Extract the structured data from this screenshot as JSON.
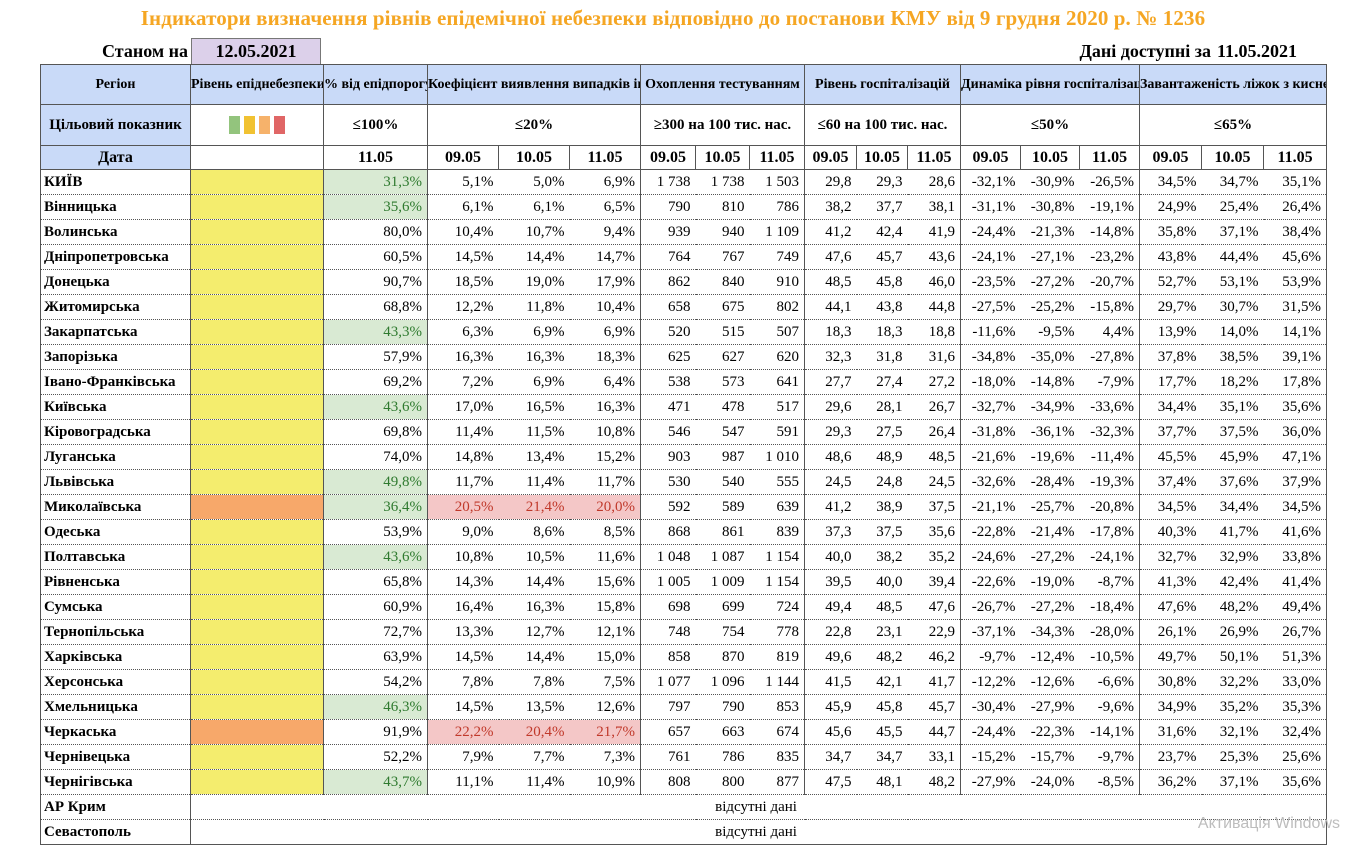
{
  "title": "Індикатори визначення рівнів епідемічної небезпеки відповідно до постанови КМУ від 9 грудня 2020 р. № 1236",
  "as_of_label": "Станом на",
  "as_of_date": "12.05.2021",
  "available_label": "Дані доступні за",
  "available_date": "11.05.2021",
  "headers": {
    "region": "Регіон",
    "level": "Рівень епіднебезпеки",
    "threshold": "% від епідпорогу",
    "detection": "Коефіцієнт виявлення випадків інфікування",
    "testing": "Охоплення тестуванням",
    "hospitalization": "Рівень госпіталізацій",
    "dynamics": "Динаміка рівня госпіталізацій",
    "oxygen": "Завантаженість ліжок з киснем"
  },
  "targets": {
    "label": "Цільовий показник",
    "threshold": "≤100%",
    "detection": "≤20%",
    "testing": "≥300 на 100 тис. нас.",
    "hospitalization": "≤60 на 100 тис. нас.",
    "dynamics": "≤50%",
    "oxygen": "≤65%"
  },
  "swatch_colors": [
    "#93c47d",
    "#f1c232",
    "#f6b26b",
    "#e06666"
  ],
  "dates": {
    "label": "Дата",
    "threshold": "11.05",
    "triple": [
      "09.05",
      "10.05",
      "11.05"
    ]
  },
  "level_colors": {
    "yellow": "#f4ed6e",
    "orange": "#f7a86a"
  },
  "rows": [
    {
      "region": "КИЇВ",
      "level": "yellow",
      "threshold": "31,3%",
      "threshold_ok": true,
      "det": [
        "5,1%",
        "5,0%",
        "6,9%"
      ],
      "det_bad": false,
      "test": [
        "1 738",
        "1 738",
        "1 503"
      ],
      "hosp": [
        "29,8",
        "29,3",
        "28,6"
      ],
      "dyn": [
        "-32,1%",
        "-30,9%",
        "-26,5%"
      ],
      "oxy": [
        "34,5%",
        "34,7%",
        "35,1%"
      ]
    },
    {
      "region": "Вінницька",
      "level": "yellow",
      "threshold": "35,6%",
      "threshold_ok": true,
      "det": [
        "6,1%",
        "6,1%",
        "6,5%"
      ],
      "det_bad": false,
      "test": [
        "790",
        "810",
        "786"
      ],
      "hosp": [
        "38,2",
        "37,7",
        "38,1"
      ],
      "dyn": [
        "-31,1%",
        "-30,8%",
        "-19,1%"
      ],
      "oxy": [
        "24,9%",
        "25,4%",
        "26,4%"
      ]
    },
    {
      "region": "Волинська",
      "level": "yellow",
      "threshold": "80,0%",
      "threshold_ok": false,
      "det": [
        "10,4%",
        "10,7%",
        "9,4%"
      ],
      "det_bad": false,
      "test": [
        "939",
        "940",
        "1 109"
      ],
      "hosp": [
        "41,2",
        "42,4",
        "41,9"
      ],
      "dyn": [
        "-24,4%",
        "-21,3%",
        "-14,8%"
      ],
      "oxy": [
        "35,8%",
        "37,1%",
        "38,4%"
      ]
    },
    {
      "region": "Дніпропетровська",
      "level": "yellow",
      "threshold": "60,5%",
      "threshold_ok": false,
      "det": [
        "14,5%",
        "14,4%",
        "14,7%"
      ],
      "det_bad": false,
      "test": [
        "764",
        "767",
        "749"
      ],
      "hosp": [
        "47,6",
        "45,7",
        "43,6"
      ],
      "dyn": [
        "-24,1%",
        "-27,1%",
        "-23,2%"
      ],
      "oxy": [
        "43,8%",
        "44,4%",
        "45,6%"
      ]
    },
    {
      "region": "Донецька",
      "level": "yellow",
      "threshold": "90,7%",
      "threshold_ok": false,
      "det": [
        "18,5%",
        "19,0%",
        "17,9%"
      ],
      "det_bad": false,
      "test": [
        "862",
        "840",
        "910"
      ],
      "hosp": [
        "48,5",
        "45,8",
        "46,0"
      ],
      "dyn": [
        "-23,5%",
        "-27,2%",
        "-20,7%"
      ],
      "oxy": [
        "52,7%",
        "53,1%",
        "53,9%"
      ]
    },
    {
      "region": "Житомирська",
      "level": "yellow",
      "threshold": "68,8%",
      "threshold_ok": false,
      "det": [
        "12,2%",
        "11,8%",
        "10,4%"
      ],
      "det_bad": false,
      "test": [
        "658",
        "675",
        "802"
      ],
      "hosp": [
        "44,1",
        "43,8",
        "44,8"
      ],
      "dyn": [
        "-27,5%",
        "-25,2%",
        "-15,8%"
      ],
      "oxy": [
        "29,7%",
        "30,7%",
        "31,5%"
      ]
    },
    {
      "region": "Закарпатська",
      "level": "yellow",
      "threshold": "43,3%",
      "threshold_ok": true,
      "det": [
        "6,3%",
        "6,9%",
        "6,9%"
      ],
      "det_bad": false,
      "test": [
        "520",
        "515",
        "507"
      ],
      "hosp": [
        "18,3",
        "18,3",
        "18,8"
      ],
      "dyn": [
        "-11,6%",
        "-9,5%",
        "4,4%"
      ],
      "oxy": [
        "13,9%",
        "14,0%",
        "14,1%"
      ]
    },
    {
      "region": "Запорізька",
      "level": "yellow",
      "threshold": "57,9%",
      "threshold_ok": false,
      "det": [
        "16,3%",
        "16,3%",
        "18,3%"
      ],
      "det_bad": false,
      "test": [
        "625",
        "627",
        "620"
      ],
      "hosp": [
        "32,3",
        "31,8",
        "31,6"
      ],
      "dyn": [
        "-34,8%",
        "-35,0%",
        "-27,8%"
      ],
      "oxy": [
        "37,8%",
        "38,5%",
        "39,1%"
      ]
    },
    {
      "region": "Івано-Франківська",
      "level": "yellow",
      "threshold": "69,2%",
      "threshold_ok": false,
      "det": [
        "7,2%",
        "6,9%",
        "6,4%"
      ],
      "det_bad": false,
      "test": [
        "538",
        "573",
        "641"
      ],
      "hosp": [
        "27,7",
        "27,4",
        "27,2"
      ],
      "dyn": [
        "-18,0%",
        "-14,8%",
        "-7,9%"
      ],
      "oxy": [
        "17,7%",
        "18,2%",
        "17,8%"
      ]
    },
    {
      "region": "Київська",
      "level": "yellow",
      "threshold": "43,6%",
      "threshold_ok": true,
      "det": [
        "17,0%",
        "16,5%",
        "16,3%"
      ],
      "det_bad": false,
      "test": [
        "471",
        "478",
        "517"
      ],
      "hosp": [
        "29,6",
        "28,1",
        "26,7"
      ],
      "dyn": [
        "-32,7%",
        "-34,9%",
        "-33,6%"
      ],
      "oxy": [
        "34,4%",
        "35,1%",
        "35,6%"
      ]
    },
    {
      "region": "Кіровоградська",
      "level": "yellow",
      "threshold": "69,8%",
      "threshold_ok": false,
      "det": [
        "11,4%",
        "11,5%",
        "10,8%"
      ],
      "det_bad": false,
      "test": [
        "546",
        "547",
        "591"
      ],
      "hosp": [
        "29,3",
        "27,5",
        "26,4"
      ],
      "dyn": [
        "-31,8%",
        "-36,1%",
        "-32,3%"
      ],
      "oxy": [
        "37,7%",
        "37,5%",
        "36,0%"
      ]
    },
    {
      "region": "Луганська",
      "level": "yellow",
      "threshold": "74,0%",
      "threshold_ok": false,
      "det": [
        "14,8%",
        "13,4%",
        "15,2%"
      ],
      "det_bad": false,
      "test": [
        "903",
        "987",
        "1 010"
      ],
      "hosp": [
        "48,6",
        "48,9",
        "48,5"
      ],
      "dyn": [
        "-21,6%",
        "-19,6%",
        "-11,4%"
      ],
      "oxy": [
        "45,5%",
        "45,9%",
        "47,1%"
      ]
    },
    {
      "region": "Львівська",
      "level": "yellow",
      "threshold": "49,8%",
      "threshold_ok": true,
      "det": [
        "11,7%",
        "11,4%",
        "11,7%"
      ],
      "det_bad": false,
      "test": [
        "530",
        "540",
        "555"
      ],
      "hosp": [
        "24,5",
        "24,8",
        "24,5"
      ],
      "dyn": [
        "-32,6%",
        "-28,4%",
        "-19,3%"
      ],
      "oxy": [
        "37,4%",
        "37,6%",
        "37,9%"
      ]
    },
    {
      "region": "Миколаївська",
      "level": "orange",
      "threshold": "36,4%",
      "threshold_ok": true,
      "det": [
        "20,5%",
        "21,4%",
        "20,0%"
      ],
      "det_bad": true,
      "test": [
        "592",
        "589",
        "639"
      ],
      "hosp": [
        "41,2",
        "38,9",
        "37,5"
      ],
      "dyn": [
        "-21,1%",
        "-25,7%",
        "-20,8%"
      ],
      "oxy": [
        "34,5%",
        "34,4%",
        "34,5%"
      ]
    },
    {
      "region": "Одеська",
      "level": "yellow",
      "threshold": "53,9%",
      "threshold_ok": false,
      "det": [
        "9,0%",
        "8,6%",
        "8,5%"
      ],
      "det_bad": false,
      "test": [
        "868",
        "861",
        "839"
      ],
      "hosp": [
        "37,3",
        "37,5",
        "35,6"
      ],
      "dyn": [
        "-22,8%",
        "-21,4%",
        "-17,8%"
      ],
      "oxy": [
        "40,3%",
        "41,7%",
        "41,6%"
      ]
    },
    {
      "region": "Полтавська",
      "level": "yellow",
      "threshold": "43,6%",
      "threshold_ok": true,
      "det": [
        "10,8%",
        "10,5%",
        "11,6%"
      ],
      "det_bad": false,
      "test": [
        "1 048",
        "1 087",
        "1 154"
      ],
      "hosp": [
        "40,0",
        "38,2",
        "35,2"
      ],
      "dyn": [
        "-24,6%",
        "-27,2%",
        "-24,1%"
      ],
      "oxy": [
        "32,7%",
        "32,9%",
        "33,8%"
      ]
    },
    {
      "region": "Рівненська",
      "level": "yellow",
      "threshold": "65,8%",
      "threshold_ok": false,
      "det": [
        "14,3%",
        "14,4%",
        "15,6%"
      ],
      "det_bad": false,
      "test": [
        "1 005",
        "1 009",
        "1 154"
      ],
      "hosp": [
        "39,5",
        "40,0",
        "39,4"
      ],
      "dyn": [
        "-22,6%",
        "-19,0%",
        "-8,7%"
      ],
      "oxy": [
        "41,3%",
        "42,4%",
        "41,4%"
      ]
    },
    {
      "region": "Сумська",
      "level": "yellow",
      "threshold": "60,9%",
      "threshold_ok": false,
      "det": [
        "16,4%",
        "16,3%",
        "15,8%"
      ],
      "det_bad": false,
      "test": [
        "698",
        "699",
        "724"
      ],
      "hosp": [
        "49,4",
        "48,5",
        "47,6"
      ],
      "dyn": [
        "-26,7%",
        "-27,2%",
        "-18,4%"
      ],
      "oxy": [
        "47,6%",
        "48,2%",
        "49,4%"
      ]
    },
    {
      "region": "Тернопільська",
      "level": "yellow",
      "threshold": "72,7%",
      "threshold_ok": false,
      "det": [
        "13,3%",
        "12,7%",
        "12,1%"
      ],
      "det_bad": false,
      "test": [
        "748",
        "754",
        "778"
      ],
      "hosp": [
        "22,8",
        "23,1",
        "22,9"
      ],
      "dyn": [
        "-37,1%",
        "-34,3%",
        "-28,0%"
      ],
      "oxy": [
        "26,1%",
        "26,9%",
        "26,7%"
      ]
    },
    {
      "region": "Харківська",
      "level": "yellow",
      "threshold": "63,9%",
      "threshold_ok": false,
      "det": [
        "14,5%",
        "14,4%",
        "15,0%"
      ],
      "det_bad": false,
      "test": [
        "858",
        "870",
        "819"
      ],
      "hosp": [
        "49,6",
        "48,2",
        "46,2"
      ],
      "dyn": [
        "-9,7%",
        "-12,4%",
        "-10,5%"
      ],
      "oxy": [
        "49,7%",
        "50,1%",
        "51,3%"
      ]
    },
    {
      "region": "Херсонська",
      "level": "yellow",
      "threshold": "54,2%",
      "threshold_ok": false,
      "det": [
        "7,8%",
        "7,8%",
        "7,5%"
      ],
      "det_bad": false,
      "test": [
        "1 077",
        "1 096",
        "1 144"
      ],
      "hosp": [
        "41,5",
        "42,1",
        "41,7"
      ],
      "dyn": [
        "-12,2%",
        "-12,6%",
        "-6,6%"
      ],
      "oxy": [
        "30,8%",
        "32,2%",
        "33,0%"
      ]
    },
    {
      "region": "Хмельницька",
      "level": "yellow",
      "threshold": "46,3%",
      "threshold_ok": true,
      "det": [
        "14,5%",
        "13,5%",
        "12,6%"
      ],
      "det_bad": false,
      "test": [
        "797",
        "790",
        "853"
      ],
      "hosp": [
        "45,9",
        "45,8",
        "45,7"
      ],
      "dyn": [
        "-30,4%",
        "-27,9%",
        "-9,6%"
      ],
      "oxy": [
        "34,9%",
        "35,2%",
        "35,3%"
      ]
    },
    {
      "region": "Черкаська",
      "level": "orange",
      "threshold": "91,9%",
      "threshold_ok": false,
      "det": [
        "22,2%",
        "20,4%",
        "21,7%"
      ],
      "det_bad": true,
      "test": [
        "657",
        "663",
        "674"
      ],
      "hosp": [
        "45,6",
        "45,5",
        "44,7"
      ],
      "dyn": [
        "-24,4%",
        "-22,3%",
        "-14,1%"
      ],
      "oxy": [
        "31,6%",
        "32,1%",
        "32,4%"
      ]
    },
    {
      "region": "Чернівецька",
      "level": "yellow",
      "threshold": "52,2%",
      "threshold_ok": false,
      "det": [
        "7,9%",
        "7,7%",
        "7,3%"
      ],
      "det_bad": false,
      "test": [
        "761",
        "786",
        "835"
      ],
      "hosp": [
        "34,7",
        "34,7",
        "33,1"
      ],
      "dyn": [
        "-15,2%",
        "-15,7%",
        "-9,7%"
      ],
      "oxy": [
        "23,7%",
        "25,3%",
        "25,6%"
      ]
    },
    {
      "region": "Чернігівська",
      "level": "yellow",
      "threshold": "43,7%",
      "threshold_ok": true,
      "det": [
        "11,1%",
        "11,4%",
        "10,9%"
      ],
      "det_bad": false,
      "test": [
        "808",
        "800",
        "877"
      ],
      "hosp": [
        "47,5",
        "48,1",
        "48,2"
      ],
      "dyn": [
        "-27,9%",
        "-24,0%",
        "-8,5%"
      ],
      "oxy": [
        "36,2%",
        "37,1%",
        "35,6%"
      ]
    }
  ],
  "nodata_rows": [
    {
      "region": "АР Крим",
      "text": "відсутні дані"
    },
    {
      "region": "Севастополь",
      "text": "відсутні дані"
    }
  ],
  "watermark": "Активація Windows"
}
